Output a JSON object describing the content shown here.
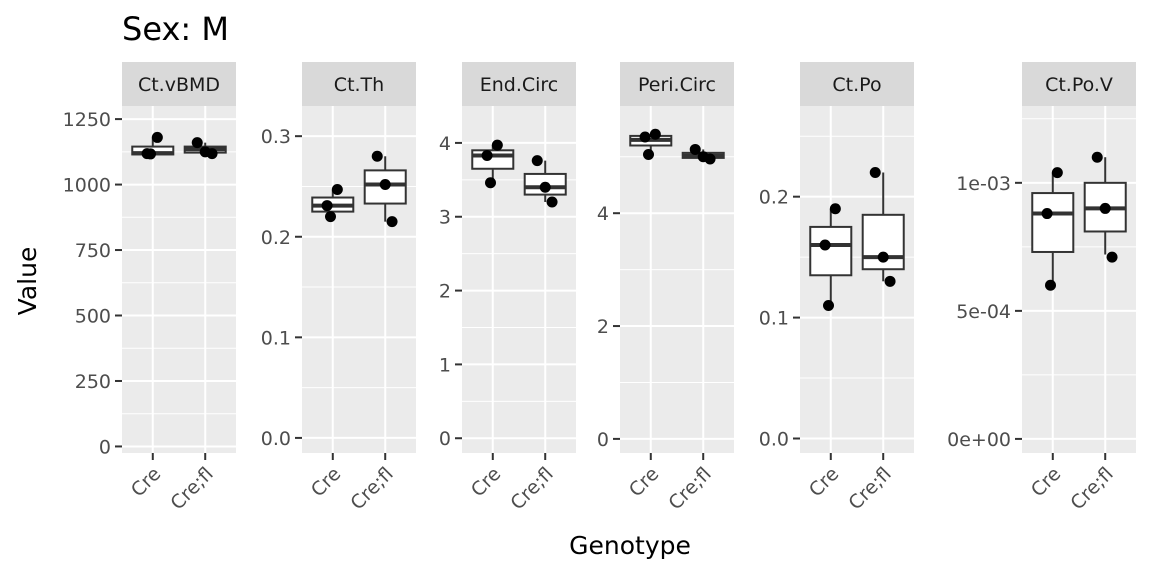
{
  "title": "Sex: M",
  "xlabel": "Genotype",
  "ylabel": "Value",
  "colors": {
    "panel_background": "#ebebeb",
    "grid_line": "#ffffff",
    "strip_background": "#d9d9d9",
    "box_stroke": "#333333",
    "point": "#000000",
    "tick": "#333333",
    "tick_label": "#4d4d4d"
  },
  "chart_data": {
    "type": "box",
    "categories": [
      "Cre",
      "Cre;fl"
    ],
    "facets": [
      {
        "name": "Ct.vBMD",
        "ylim": [
          -25,
          1300
        ],
        "yticks": [
          0,
          250,
          500,
          750,
          1000,
          1250
        ],
        "ytick_labels": [
          "0",
          "250",
          "500",
          "750",
          "1000",
          "1250"
        ],
        "boxes": [
          {
            "category": "Cre",
            "q1": 1115,
            "median": 1120,
            "q3": 1145,
            "lower": 1115,
            "upper": 1180
          },
          {
            "category": "Cre;fl",
            "q1": 1122,
            "median": 1135,
            "q3": 1145,
            "lower": 1118,
            "upper": 1160
          }
        ],
        "points": [
          {
            "category": "Cre",
            "y": 1180
          },
          {
            "category": "Cre",
            "y": 1118
          },
          {
            "category": "Cre",
            "y": 1117
          },
          {
            "category": "Cre;fl",
            "y": 1160
          },
          {
            "category": "Cre;fl",
            "y": 1125
          },
          {
            "category": "Cre;fl",
            "y": 1118
          }
        ]
      },
      {
        "name": "Ct.Th",
        "ylim": [
          -0.015,
          0.33
        ],
        "yticks": [
          0.0,
          0.1,
          0.2,
          0.3
        ],
        "ytick_labels": [
          "0.0",
          "0.1",
          "0.2",
          "0.3"
        ],
        "boxes": [
          {
            "category": "Cre",
            "q1": 0.225,
            "median": 0.231,
            "q3": 0.239,
            "lower": 0.22,
            "upper": 0.247
          },
          {
            "category": "Cre;fl",
            "q1": 0.233,
            "median": 0.252,
            "q3": 0.266,
            "lower": 0.215,
            "upper": 0.28
          }
        ],
        "points": [
          {
            "category": "Cre",
            "y": 0.247
          },
          {
            "category": "Cre",
            "y": 0.231
          },
          {
            "category": "Cre",
            "y": 0.22
          },
          {
            "category": "Cre;fl",
            "y": 0.28
          },
          {
            "category": "Cre;fl",
            "y": 0.252
          },
          {
            "category": "Cre;fl",
            "y": 0.215
          }
        ]
      },
      {
        "name": "End.Circ",
        "ylim": [
          -0.2,
          4.5
        ],
        "yticks": [
          0,
          1,
          2,
          3,
          4
        ],
        "ytick_labels": [
          "0",
          "1",
          "2",
          "3",
          "4"
        ],
        "boxes": [
          {
            "category": "Cre",
            "q1": 3.65,
            "median": 3.83,
            "q3": 3.9,
            "lower": 3.46,
            "upper": 3.97
          },
          {
            "category": "Cre;fl",
            "q1": 3.3,
            "median": 3.4,
            "q3": 3.58,
            "lower": 3.2,
            "upper": 3.76
          }
        ],
        "points": [
          {
            "category": "Cre",
            "y": 3.97
          },
          {
            "category": "Cre",
            "y": 3.83
          },
          {
            "category": "Cre",
            "y": 3.46
          },
          {
            "category": "Cre;fl",
            "y": 3.76
          },
          {
            "category": "Cre;fl",
            "y": 3.4
          },
          {
            "category": "Cre;fl",
            "y": 3.2
          }
        ]
      },
      {
        "name": "Peri.Circ",
        "ylim": [
          -0.25,
          5.9
        ],
        "yticks": [
          0,
          2,
          4
        ],
        "ytick_labels": [
          "0",
          "2",
          "4"
        ],
        "boxes": [
          {
            "category": "Cre",
            "q1": 5.2,
            "median": 5.3,
            "q3": 5.37,
            "lower": 5.04,
            "upper": 5.4
          },
          {
            "category": "Cre;fl",
            "q1": 4.98,
            "median": 5.02,
            "q3": 5.07,
            "lower": 4.96,
            "upper": 5.13
          }
        ],
        "points": [
          {
            "category": "Cre",
            "y": 5.4
          },
          {
            "category": "Cre",
            "y": 5.35
          },
          {
            "category": "Cre",
            "y": 5.04
          },
          {
            "category": "Cre;fl",
            "y": 5.13
          },
          {
            "category": "Cre;fl",
            "y": 5.0
          },
          {
            "category": "Cre;fl",
            "y": 4.96
          }
        ]
      },
      {
        "name": "Ct.Po",
        "ylim": [
          -0.012,
          0.275
        ],
        "yticks": [
          0.0,
          0.1,
          0.2
        ],
        "ytick_labels": [
          "0.0",
          "0.1",
          "0.2"
        ],
        "boxes": [
          {
            "category": "Cre",
            "q1": 0.135,
            "median": 0.16,
            "q3": 0.175,
            "lower": 0.11,
            "upper": 0.19
          },
          {
            "category": "Cre;fl",
            "q1": 0.14,
            "median": 0.15,
            "q3": 0.185,
            "lower": 0.13,
            "upper": 0.22
          }
        ],
        "points": [
          {
            "category": "Cre",
            "y": 0.19
          },
          {
            "category": "Cre",
            "y": 0.16
          },
          {
            "category": "Cre",
            "y": 0.11
          },
          {
            "category": "Cre;fl",
            "y": 0.22
          },
          {
            "category": "Cre;fl",
            "y": 0.15
          },
          {
            "category": "Cre;fl",
            "y": 0.13
          }
        ]
      },
      {
        "name": "Ct.Po.V",
        "ylim": [
          -5.5e-05,
          0.0013
        ],
        "yticks": [
          0.0,
          0.0005,
          0.001
        ],
        "ytick_labels": [
          "0e+00",
          "5e-04",
          "1e-03"
        ],
        "boxes": [
          {
            "category": "Cre",
            "q1": 0.00073,
            "median": 0.00088,
            "q3": 0.00096,
            "lower": 0.0006,
            "upper": 0.00104
          },
          {
            "category": "Cre;fl",
            "q1": 0.00081,
            "median": 0.0009,
            "q3": 0.001,
            "lower": 0.00072,
            "upper": 0.0011
          }
        ],
        "points": [
          {
            "category": "Cre",
            "y": 0.00104
          },
          {
            "category": "Cre",
            "y": 0.00088
          },
          {
            "category": "Cre",
            "y": 0.0006
          },
          {
            "category": "Cre;fl",
            "y": 0.0011
          },
          {
            "category": "Cre;fl",
            "y": 0.0009
          },
          {
            "category": "Cre;fl",
            "y": 0.00071
          }
        ]
      }
    ],
    "legend": "none",
    "grid": true
  }
}
